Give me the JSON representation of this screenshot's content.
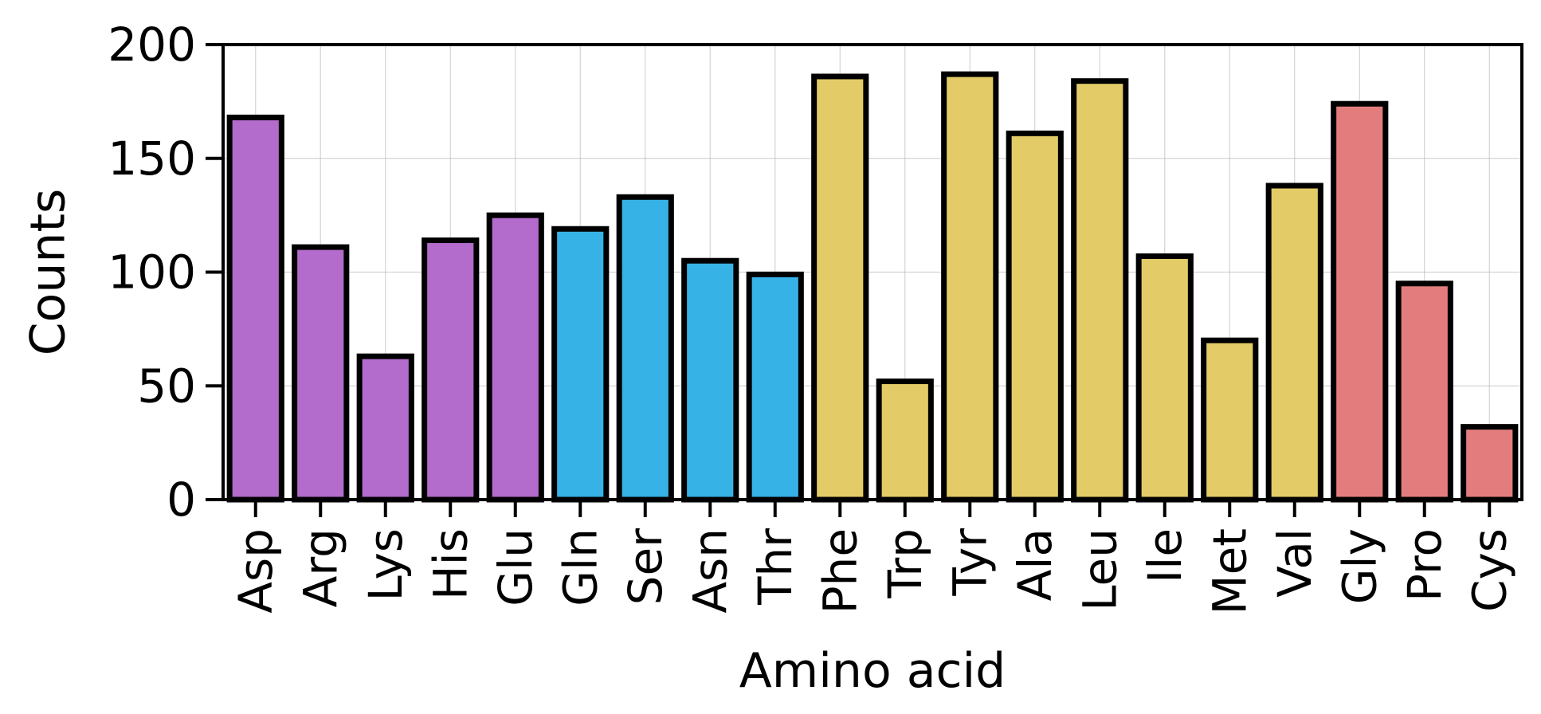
{
  "chart_data": {
    "type": "bar",
    "xlabel": "Amino acid",
    "ylabel": "Counts",
    "ylim": [
      0,
      200
    ],
    "yticks": [
      0,
      50,
      100,
      150,
      200
    ],
    "grid": true,
    "categories": [
      "Asp",
      "Arg",
      "Lys",
      "His",
      "Glu",
      "Gln",
      "Ser",
      "Asn",
      "Thr",
      "Phe",
      "Trp",
      "Tyr",
      "Ala",
      "Leu",
      "Ile",
      "Met",
      "Val",
      "Gly",
      "Pro",
      "Cys"
    ],
    "values": [
      168,
      111,
      63,
      114,
      125,
      119,
      133,
      105,
      99,
      186,
      52,
      187,
      161,
      184,
      107,
      70,
      138,
      174,
      95,
      32
    ],
    "bar_colors": [
      "#b36bcc",
      "#b36bcc",
      "#b36bcc",
      "#b36bcc",
      "#b36bcc",
      "#36b2e6",
      "#36b2e6",
      "#36b2e6",
      "#36b2e6",
      "#e3cb68",
      "#e3cb68",
      "#e3cb68",
      "#e3cb68",
      "#e3cb68",
      "#e3cb68",
      "#e3cb68",
      "#e3cb68",
      "#e37d7d",
      "#e37d7d",
      "#e37d7d"
    ],
    "edge_color": "#000000"
  }
}
